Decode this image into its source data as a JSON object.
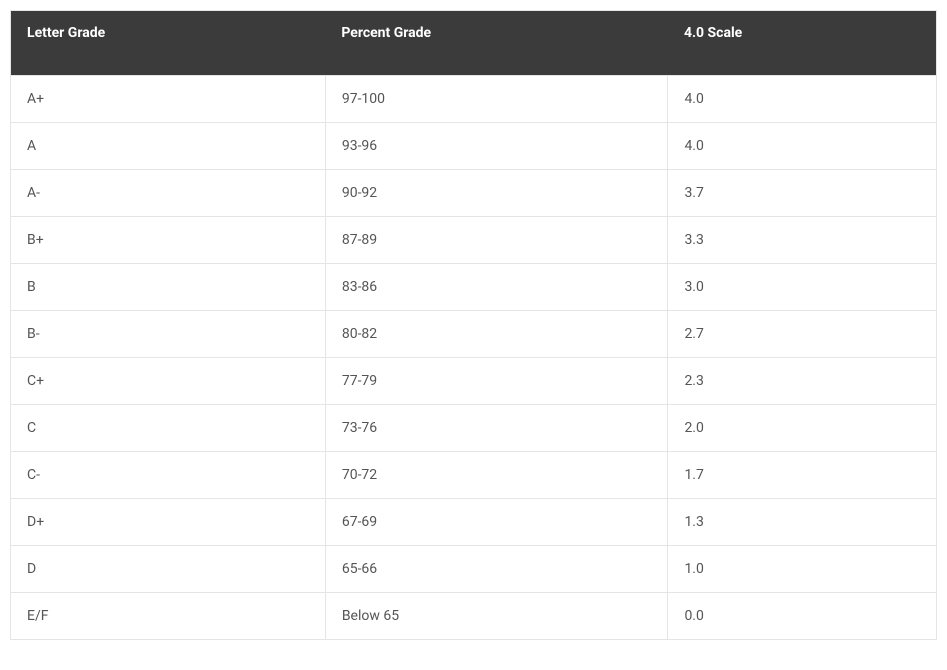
{
  "table": {
    "header_bg": "#3b3b3b",
    "header_color": "#ffffff",
    "border_color": "#e5e5e5",
    "cell_text_color": "#555555",
    "header_fontsize": 14,
    "cell_fontsize": 14,
    "columns": [
      "Letter Grade",
      "Percent Grade",
      "4.0 Scale"
    ],
    "rows": [
      [
        "A+",
        "97-100",
        "4.0"
      ],
      [
        "A",
        "93-96",
        "4.0"
      ],
      [
        "A-",
        "90-92",
        "3.7"
      ],
      [
        "B+",
        "87-89",
        "3.3"
      ],
      [
        "B",
        "83-86",
        "3.0"
      ],
      [
        "B-",
        "80-82",
        "2.7"
      ],
      [
        "C+",
        "77-79",
        "2.3"
      ],
      [
        "C",
        "73-76",
        "2.0"
      ],
      [
        "C-",
        "70-72",
        "1.7"
      ],
      [
        "D+",
        "67-69",
        "1.3"
      ],
      [
        "D",
        "65-66",
        "1.0"
      ],
      [
        "E/F",
        "Below 65",
        "0.0"
      ]
    ]
  }
}
